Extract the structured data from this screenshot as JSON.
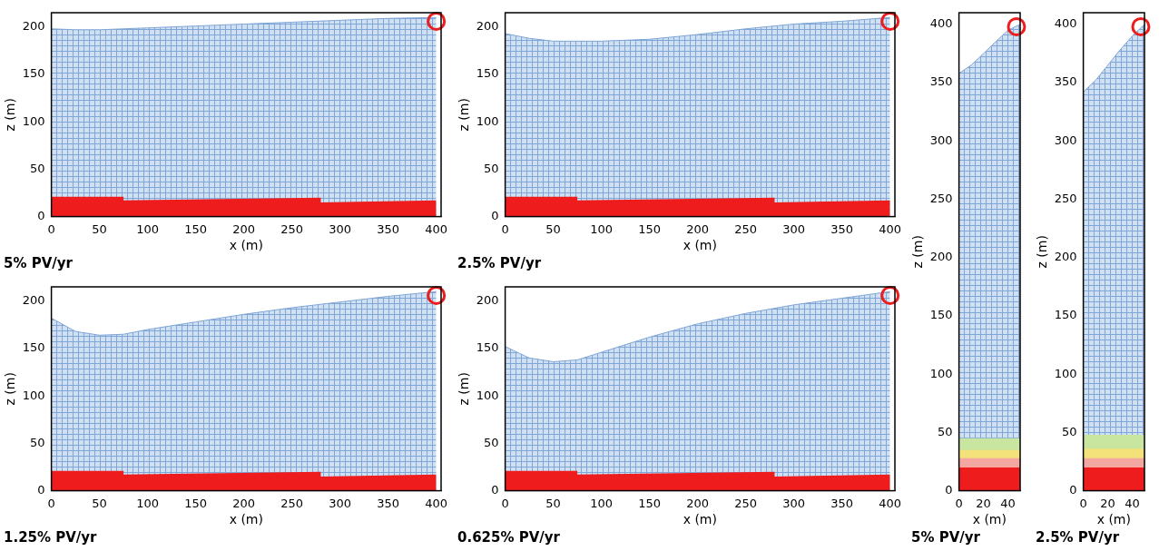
{
  "chart_data": [
    {
      "type": "line",
      "title": "5% PV/yr",
      "x_label": "x (m)",
      "y_label": "z (m)",
      "xlim": [
        0,
        405
      ],
      "ylim": [
        0,
        215
      ],
      "xticks": [
        0,
        50,
        100,
        150,
        200,
        250,
        300,
        350,
        400
      ],
      "yticks": [
        0,
        50,
        100,
        150,
        200
      ],
      "grid": false,
      "series": [
        {
          "type": "area",
          "color": "#cfe0f3",
          "x": [
            0,
            25,
            50,
            75,
            100,
            150,
            200,
            250,
            300,
            350,
            400
          ],
          "values": [
            198,
            197,
            197,
            198,
            199,
            201,
            203,
            205,
            207,
            209,
            210
          ]
        },
        {
          "type": "area",
          "color": "#ee1c1c",
          "x": [
            0,
            75,
            75,
            280,
            280,
            400
          ],
          "values": [
            21,
            21,
            17,
            20,
            15,
            17
          ]
        },
        {
          "type": "scatter",
          "marker": "circle",
          "color": "#ee1c1c",
          "x": [
            400
          ],
          "values": [
            206
          ]
        }
      ]
    },
    {
      "type": "line",
      "title": "2.5% PV/yr",
      "x_label": "x (m)",
      "y_label": "z (m)",
      "xlim": [
        0,
        405
      ],
      "ylim": [
        0,
        215
      ],
      "xticks": [
        0,
        50,
        100,
        150,
        200,
        250,
        300,
        350,
        400
      ],
      "yticks": [
        0,
        50,
        100,
        150,
        200
      ],
      "grid": false,
      "series": [
        {
          "type": "area",
          "color": "#cfe0f3",
          "x": [
            0,
            25,
            50,
            75,
            100,
            150,
            200,
            250,
            300,
            350,
            400
          ],
          "values": [
            193,
            188,
            185,
            185,
            185,
            187,
            192,
            198,
            203,
            206,
            210
          ]
        },
        {
          "type": "area",
          "color": "#ee1c1c",
          "x": [
            0,
            75,
            75,
            280,
            280,
            400
          ],
          "values": [
            21,
            21,
            17,
            20,
            15,
            17
          ]
        },
        {
          "type": "scatter",
          "marker": "circle",
          "color": "#ee1c1c",
          "x": [
            400
          ],
          "values": [
            206
          ]
        }
      ]
    },
    {
      "type": "line",
      "title": "1.25% PV/yr",
      "x_label": "x (m)",
      "y_label": "z (m)",
      "xlim": [
        0,
        405
      ],
      "ylim": [
        0,
        215
      ],
      "xticks": [
        0,
        50,
        100,
        150,
        200,
        250,
        300,
        350,
        400
      ],
      "yticks": [
        0,
        50,
        100,
        150,
        200
      ],
      "grid": false,
      "series": [
        {
          "type": "area",
          "color": "#cfe0f3",
          "x": [
            0,
            25,
            50,
            75,
            100,
            150,
            200,
            250,
            300,
            350,
            400
          ],
          "values": [
            182,
            168,
            164,
            165,
            170,
            178,
            186,
            193,
            199,
            205,
            210
          ]
        },
        {
          "type": "area",
          "color": "#ee1c1c",
          "x": [
            0,
            75,
            75,
            280,
            280,
            400
          ],
          "values": [
            21,
            21,
            17,
            20,
            15,
            17
          ]
        },
        {
          "type": "scatter",
          "marker": "circle",
          "color": "#ee1c1c",
          "x": [
            400
          ],
          "values": [
            206
          ]
        }
      ]
    },
    {
      "type": "line",
      "title": "0.625% PV/yr",
      "x_label": "x (m)",
      "y_label": "z (m)",
      "xlim": [
        0,
        405
      ],
      "ylim": [
        0,
        215
      ],
      "xticks": [
        0,
        50,
        100,
        150,
        200,
        250,
        300,
        350,
        400
      ],
      "yticks": [
        0,
        50,
        100,
        150,
        200
      ],
      "grid": false,
      "series": [
        {
          "type": "area",
          "color": "#cfe0f3",
          "x": [
            0,
            25,
            50,
            75,
            100,
            150,
            200,
            250,
            300,
            350,
            400
          ],
          "values": [
            152,
            140,
            136,
            138,
            146,
            162,
            176,
            187,
            196,
            203,
            210
          ]
        },
        {
          "type": "area",
          "color": "#ee1c1c",
          "x": [
            0,
            75,
            75,
            280,
            280,
            400
          ],
          "values": [
            21,
            21,
            17,
            20,
            15,
            17
          ]
        },
        {
          "type": "scatter",
          "marker": "circle",
          "color": "#ee1c1c",
          "x": [
            400
          ],
          "values": [
            206
          ]
        }
      ]
    },
    {
      "type": "line",
      "title": "5% PV/yr",
      "x_label": "x (m)",
      "y_label": "z (m)",
      "xlim": [
        0,
        50
      ],
      "ylim": [
        0,
        410
      ],
      "xticks": [
        0,
        20,
        40
      ],
      "yticks": [
        0,
        50,
        100,
        150,
        200,
        250,
        300,
        350,
        400
      ],
      "grid": false,
      "series": [
        {
          "type": "area",
          "color": "#cfe0f3",
          "x": [
            0,
            10,
            20,
            30,
            40,
            50
          ],
          "values": [
            358,
            365,
            375,
            385,
            395,
            400
          ]
        },
        {
          "type": "area",
          "color": "#c8e6a0",
          "x": [
            0,
            50
          ],
          "values": [
            45,
            45
          ]
        },
        {
          "type": "area",
          "color": "#f3e27a",
          "x": [
            0,
            50
          ],
          "values": [
            35,
            35
          ]
        },
        {
          "type": "area",
          "color": "#f4a6a0",
          "x": [
            0,
            50
          ],
          "values": [
            28,
            28
          ]
        },
        {
          "type": "area",
          "color": "#ee1c1c",
          "x": [
            0,
            50
          ],
          "values": [
            20,
            20
          ]
        },
        {
          "type": "scatter",
          "marker": "circle",
          "color": "#ee1c1c",
          "x": [
            47
          ],
          "values": [
            398
          ]
        }
      ]
    },
    {
      "type": "line",
      "title": "2.5% PV/yr",
      "x_label": "x (m)",
      "y_label": "z (m)",
      "xlim": [
        0,
        50
      ],
      "ylim": [
        0,
        410
      ],
      "xticks": [
        0,
        20,
        40
      ],
      "yticks": [
        0,
        50,
        100,
        150,
        200,
        250,
        300,
        350,
        400
      ],
      "grid": false,
      "series": [
        {
          "type": "area",
          "color": "#cfe0f3",
          "x": [
            0,
            10,
            20,
            30,
            40,
            50
          ],
          "values": [
            342,
            352,
            365,
            378,
            390,
            400
          ]
        },
        {
          "type": "area",
          "color": "#c8e6a0",
          "x": [
            0,
            50
          ],
          "values": [
            48,
            48
          ]
        },
        {
          "type": "area",
          "color": "#f3e27a",
          "x": [
            0,
            50
          ],
          "values": [
            36,
            36
          ]
        },
        {
          "type": "area",
          "color": "#f4a6a0",
          "x": [
            0,
            50
          ],
          "values": [
            28,
            28
          ]
        },
        {
          "type": "area",
          "color": "#ee1c1c",
          "x": [
            0,
            50
          ],
          "values": [
            20,
            20
          ]
        },
        {
          "type": "scatter",
          "marker": "circle",
          "color": "#ee1c1c",
          "x": [
            47
          ],
          "values": [
            398
          ]
        }
      ]
    }
  ]
}
